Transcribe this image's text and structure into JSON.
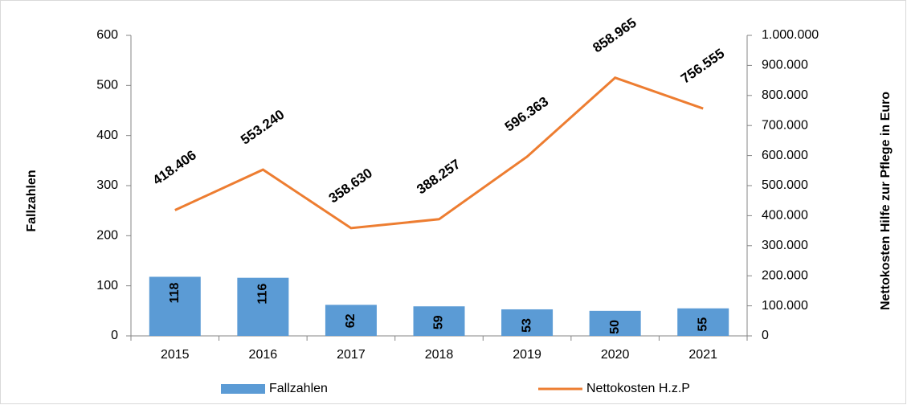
{
  "chart_data": {
    "type": "bar",
    "categories": [
      "2015",
      "2016",
      "2017",
      "2018",
      "2019",
      "2020",
      "2021"
    ],
    "y_label": "Fallzahlen",
    "y2_label": "Nettokosten Hilfe zur Pflege in Euro",
    "series": [
      {
        "name": "Fallzahlen",
        "type": "bar",
        "axis": "y",
        "color": "#5b9bd5",
        "values": [
          118,
          116,
          62,
          59,
          53,
          50,
          55
        ]
      },
      {
        "name": "Nettokosten H.z.P",
        "type": "line",
        "axis": "y2",
        "color": "#ed7d31",
        "values": [
          418406,
          553240,
          358630,
          388257,
          596363,
          858965,
          756555
        ],
        "value_labels": [
          "418.406",
          "553.240",
          "358.630",
          "388.257",
          "596.363",
          "858.965",
          "756.555"
        ]
      }
    ],
    "ylim": [
      0,
      600
    ],
    "yticks": [
      0,
      100,
      200,
      300,
      400,
      500,
      600
    ],
    "y2lim": [
      0,
      1000000
    ],
    "y2ticks": [
      0,
      {
        "value": 100000,
        "label": "100.000"
      },
      {
        "value": 200000,
        "label": "200.000"
      },
      {
        "value": 300000,
        "label": "300.000"
      },
      {
        "value": 400000,
        "label": "400.000"
      },
      {
        "value": 500000,
        "label": "500.000"
      },
      {
        "value": 600000,
        "label": "600.000"
      },
      {
        "value": 700000,
        "label": "700.000"
      },
      {
        "value": 800000,
        "label": "800.000"
      },
      {
        "value": 900000,
        "label": "900.000"
      },
      {
        "value": 1000000,
        "label": "1.000.000"
      }
    ],
    "legend": "bottom",
    "grid": false
  }
}
